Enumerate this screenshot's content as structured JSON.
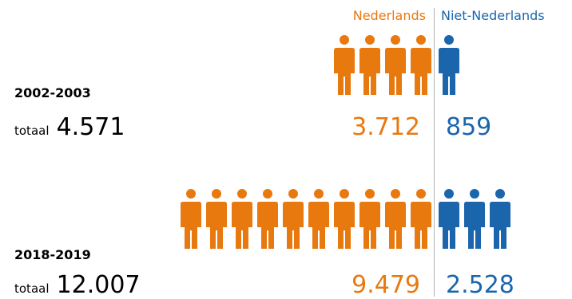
{
  "legend": {
    "dutch": "Nederlands",
    "non_dutch": "Niet-Nederlands"
  },
  "colors": {
    "dutch": "#e8790f",
    "non_dutch": "#1b65ad",
    "divider": "#b3b3b3"
  },
  "total_label": "totaal",
  "chart_data": {
    "type": "pictogram",
    "series": [
      {
        "name": "Nederlands",
        "color": "#e8790f"
      },
      {
        "name": "Niet-Nederlands",
        "color": "#1b65ad"
      }
    ],
    "categories": [
      "2002-2003",
      "2018-2019"
    ],
    "rows": [
      {
        "period": "2002-2003",
        "total": "4.571",
        "dutch": "3.712",
        "non_dutch": "859",
        "dutch_icons": 4,
        "non_dutch_icons": 1
      },
      {
        "period": "2018-2019",
        "total": "12.007",
        "dutch": "9.479",
        "non_dutch": "2.528",
        "dutch_icons": 10,
        "non_dutch_icons": 3
      }
    ]
  }
}
